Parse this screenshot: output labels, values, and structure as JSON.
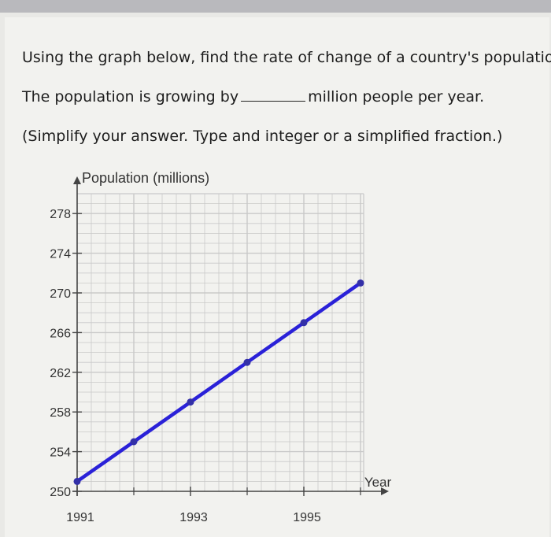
{
  "question": {
    "line1": "Using the graph below, find the rate of change of a country's population.",
    "line2_before": "The population is growing by",
    "line2_after": "million people per year.",
    "line3": "(Simplify your answer. Type and integer or a simplified fraction.)"
  },
  "answer": {
    "value": ""
  },
  "chart_data": {
    "type": "line",
    "title": "",
    "ylabel": "Population (millions)",
    "xlabel": "Year",
    "x_ticks": [
      1991,
      1993,
      1995
    ],
    "y_ticks": [
      250,
      254,
      258,
      262,
      266,
      270,
      274,
      278
    ],
    "xlim": [
      1991,
      1996
    ],
    "ylim": [
      250,
      280
    ],
    "grid": true,
    "series": [
      {
        "x": [
          1991,
          1992,
          1993,
          1994,
          1995,
          1996
        ],
        "y": [
          251,
          255,
          259,
          263,
          267,
          271
        ]
      }
    ],
    "colors": {
      "line": "#2a21d8",
      "point": "#3330a8",
      "grid": "#c9c9c9",
      "axis": "#444444"
    }
  }
}
